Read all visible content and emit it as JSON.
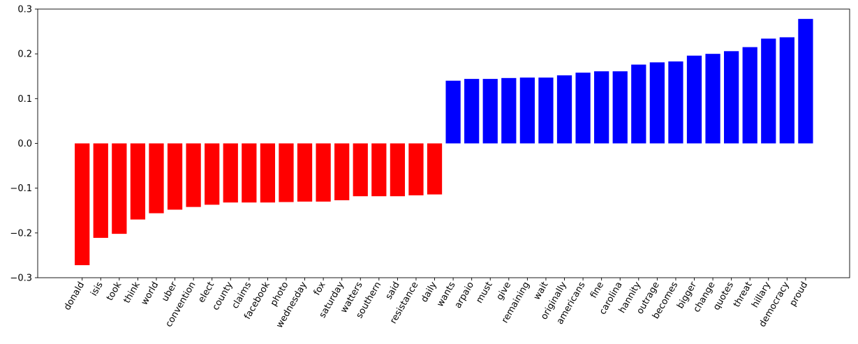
{
  "chart_data": {
    "type": "bar",
    "categories": [
      "donald",
      "isis",
      "took",
      "think",
      "world",
      "uber",
      "convention",
      "elect",
      "county",
      "claims",
      "facebook",
      "photo",
      "wednesday",
      "fox",
      "saturday",
      "watters",
      "southern",
      "said",
      "resistance",
      "daily",
      "wants",
      "arpaio",
      "must",
      "give",
      "remaining",
      "wait",
      "originally",
      "americans",
      "fine",
      "carolina",
      "hannity",
      "outrage",
      "becomes",
      "bigger",
      "change",
      "quotes",
      "threat",
      "hillary",
      "democracy",
      "proud"
    ],
    "values": [
      -0.272,
      -0.211,
      -0.202,
      -0.17,
      -0.156,
      -0.148,
      -0.142,
      -0.137,
      -0.132,
      -0.132,
      -0.132,
      -0.131,
      -0.13,
      -0.13,
      -0.127,
      -0.118,
      -0.118,
      -0.118,
      -0.116,
      -0.114,
      0.14,
      0.144,
      0.144,
      0.146,
      0.147,
      0.147,
      0.152,
      0.158,
      0.161,
      0.161,
      0.176,
      0.181,
      0.183,
      0.196,
      0.2,
      0.206,
      0.215,
      0.234,
      0.237,
      0.278
    ],
    "colors": {
      "negative": "#ff0000",
      "positive": "#0000ff"
    },
    "ylim": [
      -0.3,
      0.3
    ],
    "yticks": [
      -0.3,
      -0.2,
      -0.1,
      0.0,
      0.1,
      0.2,
      0.3
    ],
    "ytick_labels": [
      "−0.3",
      "−0.2",
      "−0.1",
      "0.0",
      "0.1",
      "0.2",
      "0.3"
    ],
    "xtick_rotation": 60,
    "grid": false,
    "title": "",
    "xlabel": "",
    "ylabel": ""
  }
}
